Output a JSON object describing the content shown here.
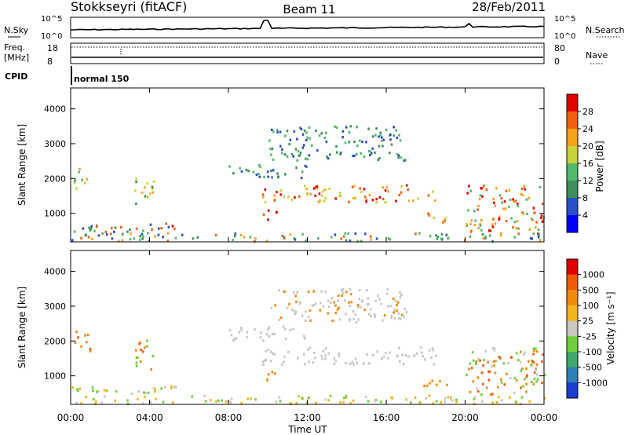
{
  "header": {
    "title": "Stokkseyri (fitACF)",
    "beam": "Beam 11",
    "date": "28/Feb/2011"
  },
  "noise_panel": {
    "left_label": "N.Sky",
    "right_label": "N.Search",
    "left_ticks": [
      "10^5",
      "10^0"
    ],
    "right_ticks": [
      "10^5",
      "10^0"
    ]
  },
  "freq_panel": {
    "left_label_1": "Freq.",
    "left_label_2": "[MHz]",
    "right_label": "Nave",
    "left_ticks": [
      "18",
      "8"
    ],
    "right_ticks": [
      "80",
      "0"
    ]
  },
  "cpid": {
    "label": "CPID",
    "mode": "normal 150"
  },
  "chart_data": [
    {
      "type": "heatmap",
      "name": "power",
      "ylabel": "Slant Range [km]",
      "ylim": [
        180,
        4600
      ],
      "yticks": [
        1000,
        2000,
        3000,
        4000
      ],
      "xlim": [
        0,
        24
      ],
      "colorbar": {
        "label": "Power [dB]",
        "ticks": [
          "4",
          "8",
          "12",
          "16",
          "20",
          "24",
          "28"
        ],
        "colors": [
          "#0000ff",
          "#2a4fc4",
          "#3f8f5b",
          "#52b86a",
          "#c8d23a",
          "#f5a21a",
          "#f06010",
          "#e00000"
        ]
      }
    },
    {
      "type": "heatmap",
      "name": "velocity",
      "ylabel": "Slant Range [km]",
      "ylim": [
        180,
        4600
      ],
      "yticks": [
        1000,
        2000,
        3000,
        4000
      ],
      "xlim": [
        0,
        24
      ],
      "colorbar": {
        "label": "Velocity [m s⁻¹]",
        "ticks": [
          "1000",
          "500",
          "100",
          "25",
          "-25",
          "-100",
          "-500",
          "-1000"
        ],
        "colors": [
          "#1a3ccf",
          "#2f7fb4",
          "#3fa86a",
          "#6fcf3a",
          "#c8c8c0",
          "#f2b61c",
          "#f08a0c",
          "#ee5a0a",
          "#e00000"
        ]
      }
    }
  ],
  "x_axis": {
    "label": "Time UT",
    "ticks": [
      "00:00",
      "04:00",
      "08:00",
      "12:00",
      "16:00",
      "20:00",
      "00:00"
    ]
  }
}
